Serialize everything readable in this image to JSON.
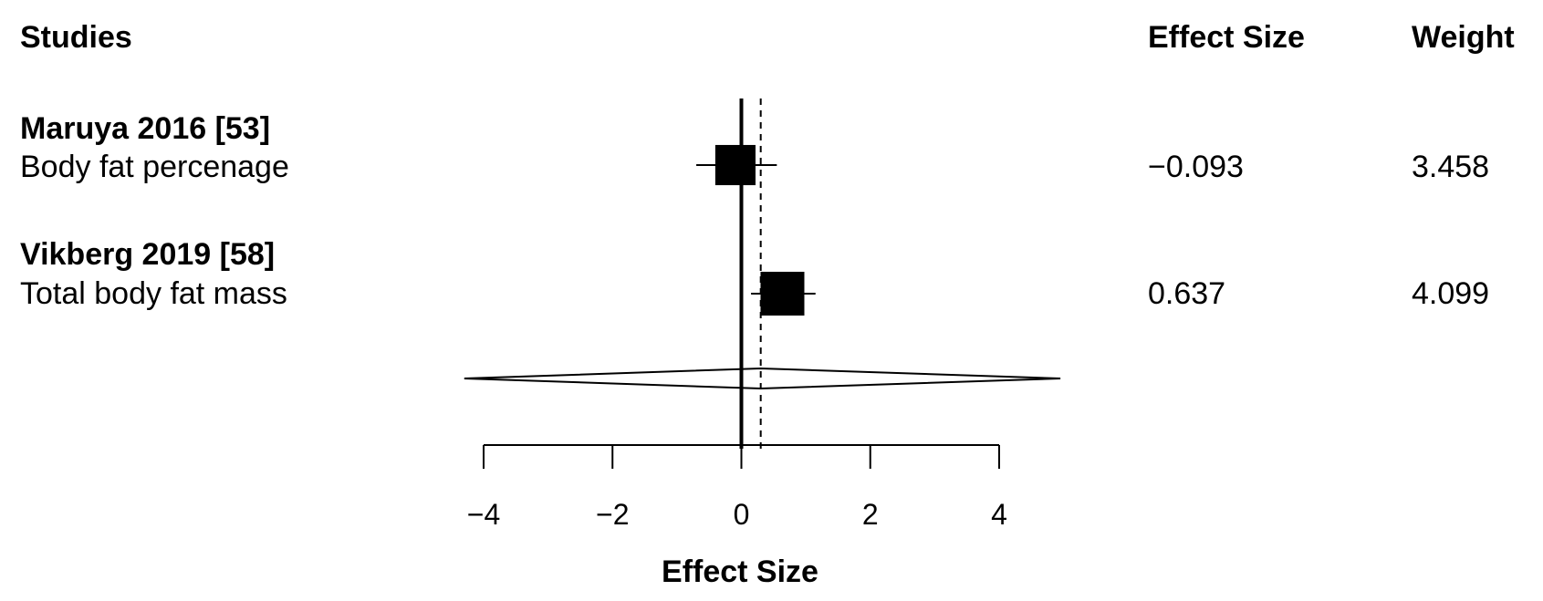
{
  "chart_data": {
    "type": "forest",
    "headers": {
      "studies": "Studies",
      "effect_size": "Effect Size",
      "weight": "Weight"
    },
    "studies": [
      {
        "name": "Maruya 2016 [53]",
        "outcome": "Body fat percenage",
        "effect_size": -0.093,
        "effect_size_label": "−0.093",
        "ci": [
          -0.7,
          0.55
        ],
        "weight": 3.458,
        "weight_label": "3.458"
      },
      {
        "name": "Vikberg 2019 [58]",
        "outcome": "Total body fat mass",
        "effect_size": 0.637,
        "effect_size_label": "0.637",
        "ci": [
          0.15,
          1.15
        ],
        "weight": 4.099,
        "weight_label": "4.099"
      }
    ],
    "summary": {
      "estimate": 0.3,
      "ci": [
        -4.3,
        4.95
      ]
    },
    "null_line": 0,
    "xlim": [
      -4,
      4
    ],
    "xticks": [
      -4,
      -2,
      0,
      2,
      4
    ],
    "xtick_labels": [
      "−4",
      "−2",
      "0",
      "2",
      "4"
    ],
    "xlabel": "Effect Size"
  }
}
